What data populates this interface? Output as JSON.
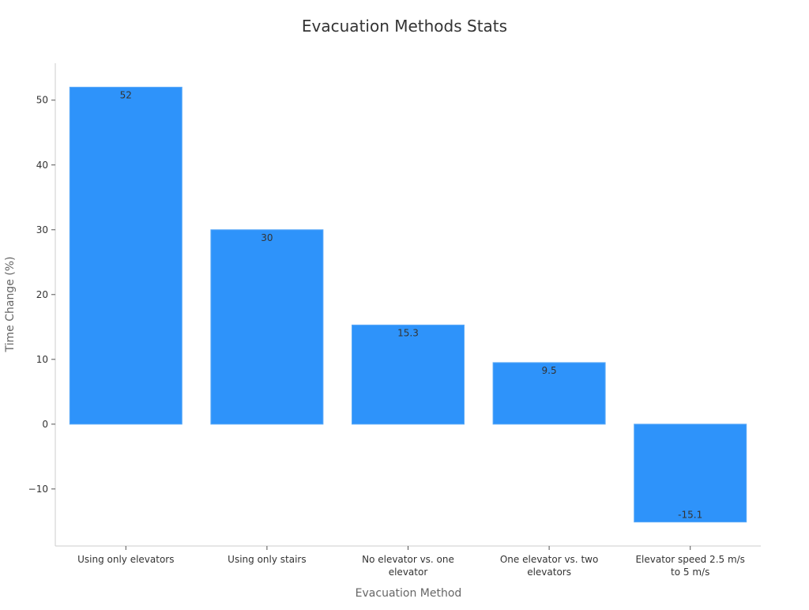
{
  "chart_data": {
    "type": "bar",
    "title": "Evacuation Methods Stats",
    "xlabel": "Evacuation Method",
    "ylabel": "Time Change (%)",
    "categories": [
      [
        "Using only elevators"
      ],
      [
        "Using only stairs"
      ],
      [
        "No elevator vs. one",
        "elevator"
      ],
      [
        "One elevator vs. two",
        "elevators"
      ],
      [
        "Elevator speed 2.5 m/s",
        "to 5 m/s"
      ]
    ],
    "values": [
      52,
      30,
      15.3,
      9.5,
      -15.1
    ],
    "data_labels": [
      "52",
      "30",
      "15.3",
      "9.5",
      "-15.1"
    ],
    "yticks": [
      -10,
      0,
      10,
      20,
      30,
      40,
      50
    ],
    "ytick_labels": [
      "−10",
      "0",
      "10",
      "20",
      "30",
      "40",
      "50"
    ],
    "ylim": [
      -18.8,
      55.7
    ],
    "grid": false,
    "colors": {
      "bar": "#2e93fa",
      "bar_edge": "#5aa9f7",
      "text": "#333333",
      "axis": "#cccccc"
    }
  }
}
